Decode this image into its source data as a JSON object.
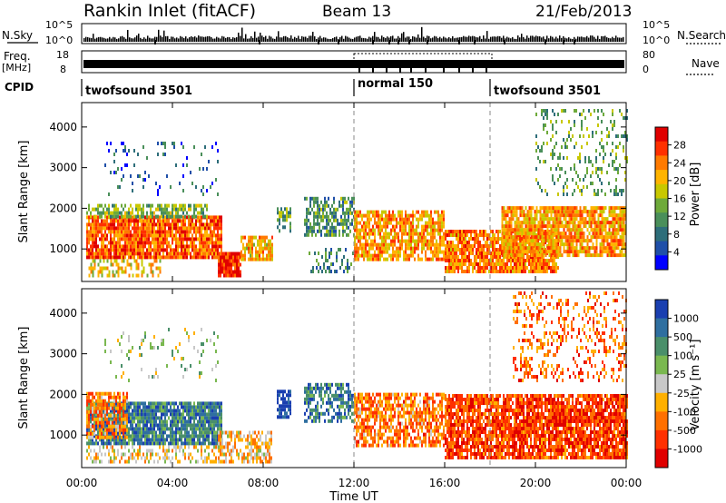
{
  "header": {
    "title": "Rankin Inlet (fitACF)",
    "beam": "Beam 13",
    "date": "21/Feb/2013"
  },
  "top_panels": {
    "nsky_label": "N.Sky",
    "nsky_ticks": [
      "10^5",
      "10^0"
    ],
    "nsearch_label": "N.Search",
    "freq_label": "Freq.",
    "freq_unit": "[MHz]",
    "freq_ticks": [
      "18",
      "8"
    ],
    "nave_ticks": [
      "80",
      "0"
    ],
    "nave_label": "Nave",
    "cpid_label": "CPID",
    "cpid_segments": [
      {
        "label": "twofsound 3501",
        "start": 0,
        "end": 12
      },
      {
        "label": "normal 150",
        "start": 12,
        "end": 18
      },
      {
        "label": "twofsound 3501",
        "start": 18,
        "end": 24
      }
    ]
  },
  "chart_data": [
    {
      "type": "heatmap",
      "title": "",
      "xlabel": "Time UT",
      "ylabel": "Slant Range [km]",
      "x_ticks": [
        "00:00",
        "04:00",
        "08:00",
        "12:00",
        "16:00",
        "20:00",
        "00:00"
      ],
      "xlim_hours": [
        0,
        24
      ],
      "y_ticks": [
        1000,
        2000,
        3000,
        4000
      ],
      "ylim": [
        200,
        4600
      ],
      "colorbar": {
        "label": "Power [dB]",
        "ticks": [
          "4",
          "8",
          "12",
          "16",
          "20",
          "24",
          "28"
        ],
        "range": [
          0,
          32
        ],
        "colors": [
          "#0000ff",
          "#1f4fa8",
          "#2e6e7a",
          "#4a8f5a",
          "#6eaa3a",
          "#c8c800",
          "#ffb400",
          "#ff7a00",
          "#ff3000",
          "#e00000"
        ]
      },
      "bands": [
        {
          "t0": 0.2,
          "t1": 6.2,
          "r0": 750,
          "r1": 1750,
          "level": 0.8,
          "density": 0.9
        },
        {
          "t0": 0.2,
          "t1": 5.5,
          "r0": 1750,
          "r1": 2100,
          "level": 0.45,
          "density": 0.7
        },
        {
          "t0": 0.3,
          "t1": 3.5,
          "r0": 300,
          "r1": 700,
          "level": 0.6,
          "density": 0.5
        },
        {
          "t0": 6.0,
          "t1": 7.0,
          "r0": 300,
          "r1": 900,
          "level": 0.9,
          "density": 0.9
        },
        {
          "t0": 7.0,
          "t1": 8.4,
          "r0": 700,
          "r1": 1300,
          "level": 0.65,
          "density": 0.7
        },
        {
          "t0": 8.6,
          "t1": 9.2,
          "r0": 1400,
          "r1": 2000,
          "level": 0.4,
          "density": 0.6
        },
        {
          "t0": 9.8,
          "t1": 12.0,
          "r0": 1300,
          "r1": 2200,
          "level": 0.35,
          "density": 0.6
        },
        {
          "t0": 10.0,
          "t1": 12.0,
          "r0": 400,
          "r1": 1000,
          "level": 0.3,
          "density": 0.35
        },
        {
          "t0": 12.0,
          "t1": 16.0,
          "r0": 700,
          "r1": 1900,
          "level": 0.7,
          "density": 0.75
        },
        {
          "t0": 16.0,
          "t1": 21.0,
          "r0": 400,
          "r1": 1400,
          "level": 0.75,
          "density": 0.85
        },
        {
          "t0": 18.5,
          "t1": 24.0,
          "r0": 800,
          "r1": 2000,
          "level": 0.7,
          "density": 0.85
        },
        {
          "t0": 1.0,
          "t1": 6.0,
          "r0": 2300,
          "r1": 3600,
          "level": 0.2,
          "density": 0.1
        },
        {
          "t0": 20.0,
          "t1": 24.0,
          "r0": 2300,
          "r1": 4400,
          "level": 0.4,
          "density": 0.2
        }
      ]
    },
    {
      "type": "heatmap",
      "title": "",
      "xlabel": "Time UT",
      "ylabel": "Slant Range [km]",
      "x_ticks": [
        "00:00",
        "04:00",
        "08:00",
        "12:00",
        "16:00",
        "20:00",
        "00:00"
      ],
      "xlim_hours": [
        0,
        24
      ],
      "y_ticks": [
        1000,
        2000,
        3000,
        4000
      ],
      "ylim": [
        200,
        4600
      ],
      "colorbar": {
        "label": "Velocity [m s⁻¹]",
        "ticks": [
          "1000",
          "500",
          "100",
          "25",
          "-25",
          "-100",
          "-500",
          "-1000"
        ],
        "range": [
          -1000,
          1000
        ],
        "colors": [
          "#1a3fb0",
          "#2f6fa0",
          "#4a8f6a",
          "#7ab850",
          "#c8c8c8",
          "#ffb000",
          "#ff7000",
          "#ff3000",
          "#e00000"
        ]
      },
      "bands": [
        {
          "t0": 0.2,
          "t1": 6.2,
          "r0": 750,
          "r1": 1750,
          "level": 0.22,
          "density": 0.9
        },
        {
          "t0": 0.2,
          "t1": 2.0,
          "r0": 900,
          "r1": 2000,
          "level": 0.7,
          "density": 0.7
        },
        {
          "t0": 0.2,
          "t1": 6.0,
          "r0": 300,
          "r1": 700,
          "level": 0.55,
          "density": 0.4
        },
        {
          "t0": 6.0,
          "t1": 8.4,
          "r0": 300,
          "r1": 1100,
          "level": 0.6,
          "density": 0.6
        },
        {
          "t0": 8.6,
          "t1": 9.2,
          "r0": 1400,
          "r1": 2100,
          "level": 0.02,
          "density": 0.8
        },
        {
          "t0": 9.8,
          "t1": 12.0,
          "r0": 1300,
          "r1": 2200,
          "level": 0.2,
          "density": 0.6
        },
        {
          "t0": 12.0,
          "t1": 16.0,
          "r0": 700,
          "r1": 2000,
          "level": 0.72,
          "density": 0.7
        },
        {
          "t0": 16.0,
          "t1": 24.0,
          "r0": 400,
          "r1": 2000,
          "level": 0.82,
          "density": 0.85
        },
        {
          "t0": 1.0,
          "t1": 6.0,
          "r0": 2300,
          "r1": 3600,
          "level": 0.45,
          "density": 0.1
        },
        {
          "t0": 19.0,
          "t1": 24.0,
          "r0": 2300,
          "r1": 4500,
          "level": 0.75,
          "density": 0.25
        }
      ]
    }
  ]
}
